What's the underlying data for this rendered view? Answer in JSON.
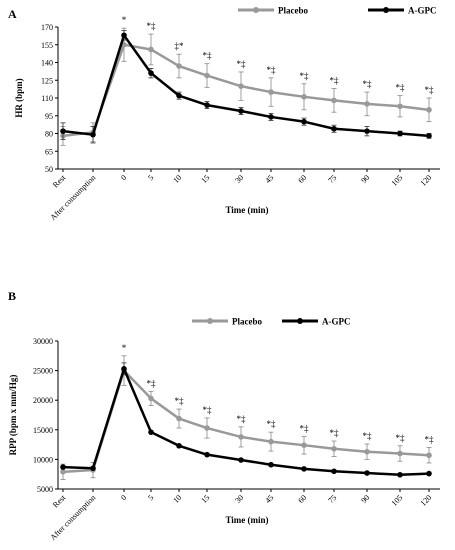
{
  "chart_data": [
    {
      "type": "line",
      "panel_label": "A",
      "ylabel": "HR (bpm)",
      "xlabel": "Time (min)",
      "categories": [
        "Rest",
        "After consumption",
        "0",
        "5",
        "10",
        "15",
        "30",
        "45",
        "60",
        "75",
        "90",
        "105",
        "120"
      ],
      "ylim": [
        50,
        170
      ],
      "yticks": [
        50,
        65,
        80,
        95,
        110,
        125,
        140,
        155,
        170
      ],
      "legend_position": "top-center",
      "series": [
        {
          "name": "Placebo",
          "color": "#999999",
          "values": [
            78,
            81,
            155,
            151,
            137,
            129,
            120,
            115,
            111,
            108,
            105,
            103,
            100
          ],
          "errors": [
            8,
            8,
            14,
            13,
            10,
            10,
            12,
            12,
            11,
            10,
            10,
            9,
            10
          ]
        },
        {
          "name": "A-GPC",
          "color": "#000000",
          "values": [
            82,
            79,
            163,
            131,
            112,
            104,
            99,
            94,
            90,
            84,
            82,
            80,
            78
          ],
          "errors": [
            7,
            7,
            4,
            4,
            3,
            3,
            3,
            3,
            3,
            3,
            4,
            2,
            2
          ]
        }
      ],
      "annotations": [
        "",
        "",
        "*",
        "*‡",
        "‡*",
        "*‡",
        "*‡",
        "*‡",
        "*‡",
        "*‡",
        "*‡",
        "*‡",
        "*‡"
      ]
    },
    {
      "type": "line",
      "panel_label": "B",
      "ylabel": "RPP (bpm x mm/Hg)",
      "xlabel": "Time (min)",
      "categories": [
        "Rest",
        "After consumption",
        "0",
        "5",
        "10",
        "15",
        "30",
        "45",
        "60",
        "75",
        "90",
        "105",
        "120"
      ],
      "ylim": [
        5000,
        30000
      ],
      "yticks": [
        5000,
        10000,
        15000,
        20000,
        25000,
        30000
      ],
      "legend_position": "top-center",
      "series": [
        {
          "name": "Placebo",
          "color": "#999999",
          "values": [
            7900,
            8200,
            25000,
            20300,
            16900,
            15300,
            13800,
            13000,
            12400,
            11800,
            11300,
            11000,
            10700
          ],
          "errors": [
            1300,
            1300,
            2500,
            1200,
            1600,
            1700,
            1700,
            1600,
            1500,
            1300,
            1300,
            1300,
            1300
          ]
        },
        {
          "name": "A-GPC",
          "color": "#000000",
          "values": [
            8700,
            8500,
            25300,
            14600,
            12300,
            10800,
            9900,
            9100,
            8400,
            8000,
            7700,
            7400,
            7600
          ],
          "errors": [
            0,
            0,
            1000,
            0,
            0,
            0,
            0,
            0,
            0,
            0,
            0,
            0,
            0
          ]
        }
      ],
      "annotations": [
        "",
        "",
        "*",
        "*‡",
        "*‡",
        "*‡",
        "*‡",
        "*‡",
        "*‡",
        "*‡",
        "*‡",
        "*‡",
        "*‡"
      ]
    }
  ]
}
